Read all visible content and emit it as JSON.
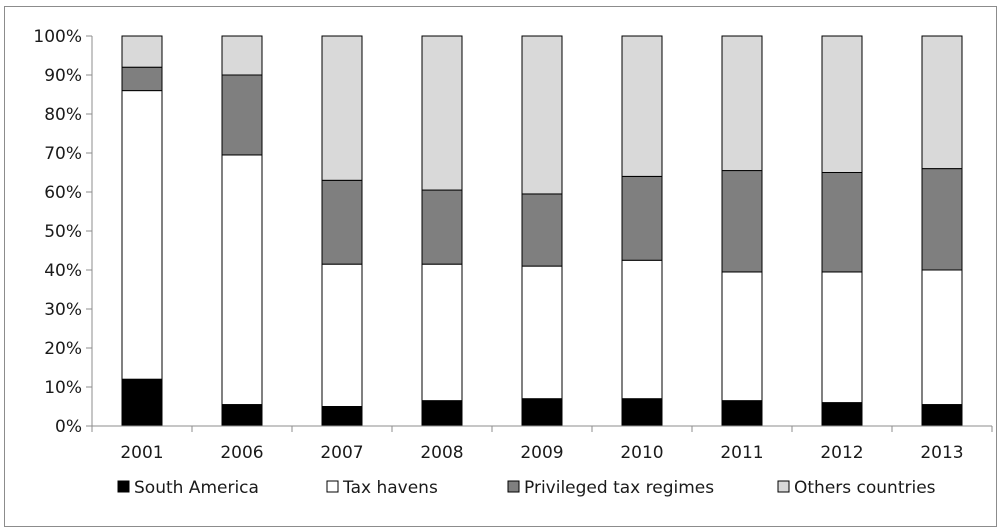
{
  "chart_data": {
    "type": "bar",
    "stacked": true,
    "title": "",
    "xlabel": "",
    "ylabel": "",
    "categories": [
      "2001",
      "2006",
      "2007",
      "2008",
      "2009",
      "2010",
      "2011",
      "2012",
      "2013"
    ],
    "ylim": [
      0,
      100
    ],
    "yticks": [
      "0%",
      "10%",
      "20%",
      "30%",
      "40%",
      "50%",
      "60%",
      "70%",
      "80%",
      "90%",
      "100%"
    ],
    "grid": false,
    "legend_position": "bottom",
    "series": [
      {
        "name": "South America",
        "color": "#000000",
        "values": [
          12,
          5.5,
          5,
          6.5,
          7,
          7,
          6.5,
          6,
          5.5
        ]
      },
      {
        "name": "Tax havens",
        "color": "#ffffff",
        "values": [
          74,
          64,
          36.5,
          35,
          34,
          35.5,
          33,
          33.5,
          34.5
        ]
      },
      {
        "name": "Privileged tax regimes",
        "color": "#7f7f7f",
        "values": [
          6,
          20.5,
          21.5,
          19,
          18.5,
          21.5,
          26,
          25.5,
          26
        ]
      },
      {
        "name": "Others countries",
        "color": "#d9d9d9",
        "values": [
          8,
          10,
          37,
          39.5,
          40.5,
          36,
          34.5,
          35,
          34
        ]
      }
    ]
  }
}
